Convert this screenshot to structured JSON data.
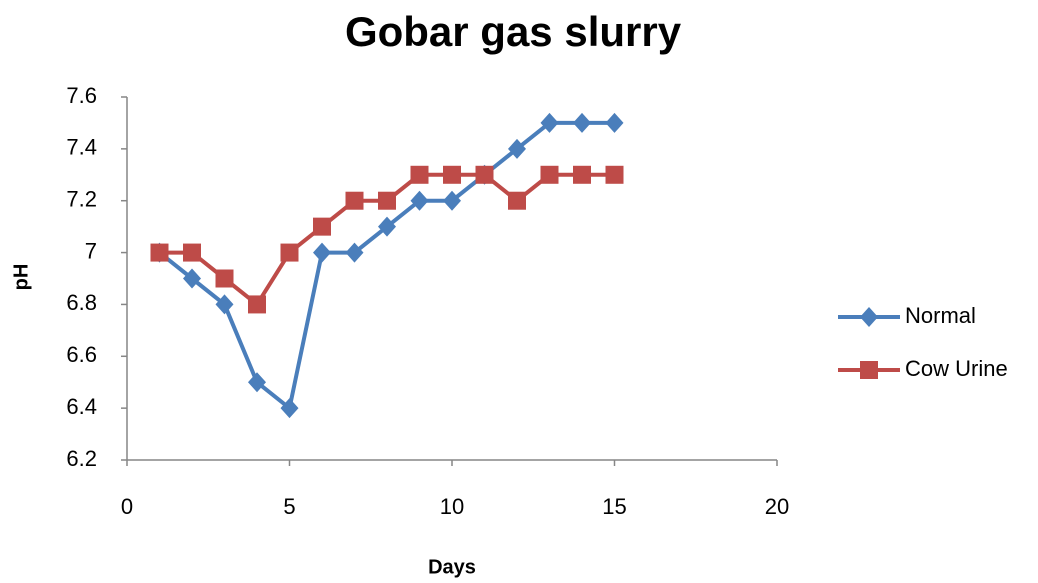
{
  "chart_data": {
    "type": "line",
    "title": "Gobar gas slurry",
    "x_label": "Days",
    "y_label": "pH",
    "x": [
      1,
      2,
      3,
      4,
      5,
      6,
      7,
      8,
      9,
      10,
      11,
      12,
      13,
      14,
      15
    ],
    "series": [
      {
        "name": "Normal",
        "color": "#4a7ebb",
        "marker": "diamond",
        "values": [
          7.0,
          6.9,
          6.8,
          6.5,
          6.4,
          7.0,
          7.0,
          7.1,
          7.2,
          7.2,
          7.3,
          7.4,
          7.5,
          7.5,
          7.5
        ]
      },
      {
        "name": "Cow Urine",
        "color": "#be4b48",
        "marker": "square",
        "values": [
          7.0,
          7.0,
          6.9,
          6.8,
          7.0,
          7.1,
          7.2,
          7.2,
          7.3,
          7.3,
          7.3,
          7.2,
          7.3,
          7.3,
          7.3
        ]
      }
    ],
    "xlim": [
      0,
      20
    ],
    "xticks": [
      0,
      5,
      10,
      15,
      20
    ],
    "ylim": [
      6.2,
      7.6
    ],
    "yticks": [
      6.2,
      6.4,
      6.6,
      6.8,
      7,
      7.2,
      7.4,
      7.6
    ],
    "grid": false,
    "legend": "right"
  }
}
